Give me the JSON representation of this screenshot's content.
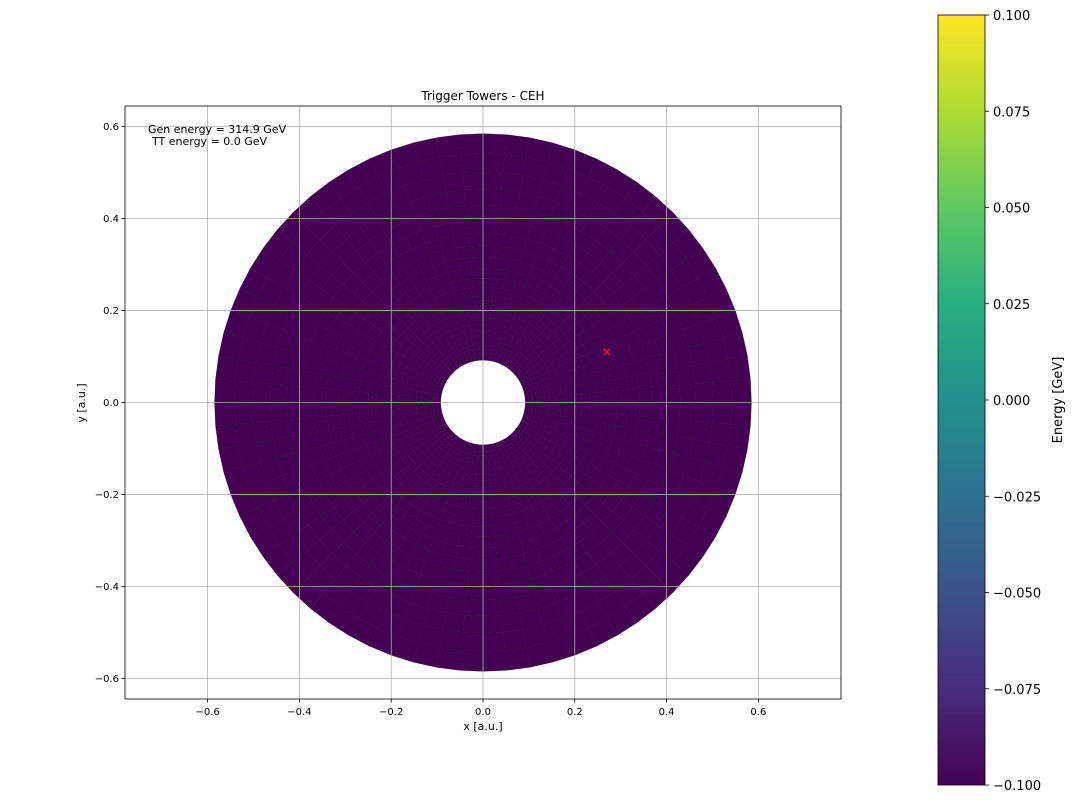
{
  "chart_data": {
    "type": "heatmap",
    "title": "Trigger Towers - CEH",
    "xlabel": "x [a.u.]",
    "ylabel": "y [a.u.]",
    "xlim": [
      -0.78,
      0.78
    ],
    "ylim": [
      -0.645,
      0.645
    ],
    "x_ticks": [
      -0.6,
      -0.4,
      -0.2,
      0.0,
      0.2,
      0.4,
      0.6
    ],
    "x_tick_labels": [
      "−0.6",
      "−0.4",
      "−0.2",
      "0.0",
      "0.2",
      "0.4",
      "0.6"
    ],
    "y_ticks": [
      0.6,
      0.4,
      0.2,
      0.0,
      -0.2,
      -0.4,
      -0.6
    ],
    "y_tick_labels": [
      "0.6",
      "0.4",
      "0.2",
      "0.0",
      "−0.2",
      "−0.4",
      "−0.6"
    ],
    "grid": true,
    "annotation": {
      "line1": "Gen energy = 314.9 GeV",
      "line2": "TT energy = 0.0 GeV"
    },
    "towers": {
      "inner_radius": 0.092,
      "outer_radius": 0.585,
      "n_phi": 72,
      "n_r": 24,
      "energy": 0.0,
      "fill_color": "#440154"
    },
    "gen_marker": {
      "x": 0.27,
      "y": 0.11,
      "symbol": "x",
      "color": "#e8202a"
    },
    "colorbar": {
      "label": "Energy [GeV]",
      "min": -0.1,
      "max": 0.1,
      "colormap": "viridis",
      "ticks": [
        0.1,
        0.075,
        0.05,
        0.025,
        0.0,
        -0.025,
        -0.05,
        -0.075,
        -0.1
      ],
      "tick_labels": [
        "0.100",
        "0.075",
        "0.050",
        "0.025",
        "0.000",
        "−0.025",
        "−0.050",
        "−0.075",
        "−0.100"
      ]
    }
  }
}
